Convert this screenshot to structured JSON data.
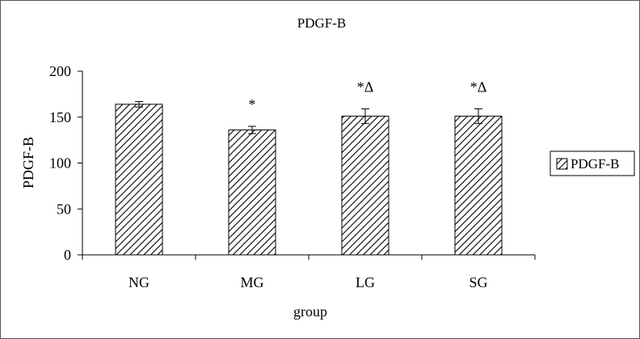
{
  "chart_data": {
    "type": "bar",
    "title": "PDGF-B",
    "xlabel": "group",
    "ylabel": "PDGF-B",
    "categories": [
      "NG",
      "MG",
      "LG",
      "SG"
    ],
    "series": [
      {
        "name": "PDGF-B",
        "values": [
          164,
          136,
          151,
          151
        ],
        "errors": [
          3,
          4,
          8,
          8
        ],
        "annotations": [
          "",
          "*",
          "*Δ",
          "*Δ"
        ]
      }
    ],
    "ylim": [
      0,
      200
    ],
    "yticks": [
      "0",
      "50",
      "100",
      "150",
      "200"
    ],
    "grid": false,
    "legend_position": "right",
    "fill_pattern": "diagonal-hatch"
  }
}
